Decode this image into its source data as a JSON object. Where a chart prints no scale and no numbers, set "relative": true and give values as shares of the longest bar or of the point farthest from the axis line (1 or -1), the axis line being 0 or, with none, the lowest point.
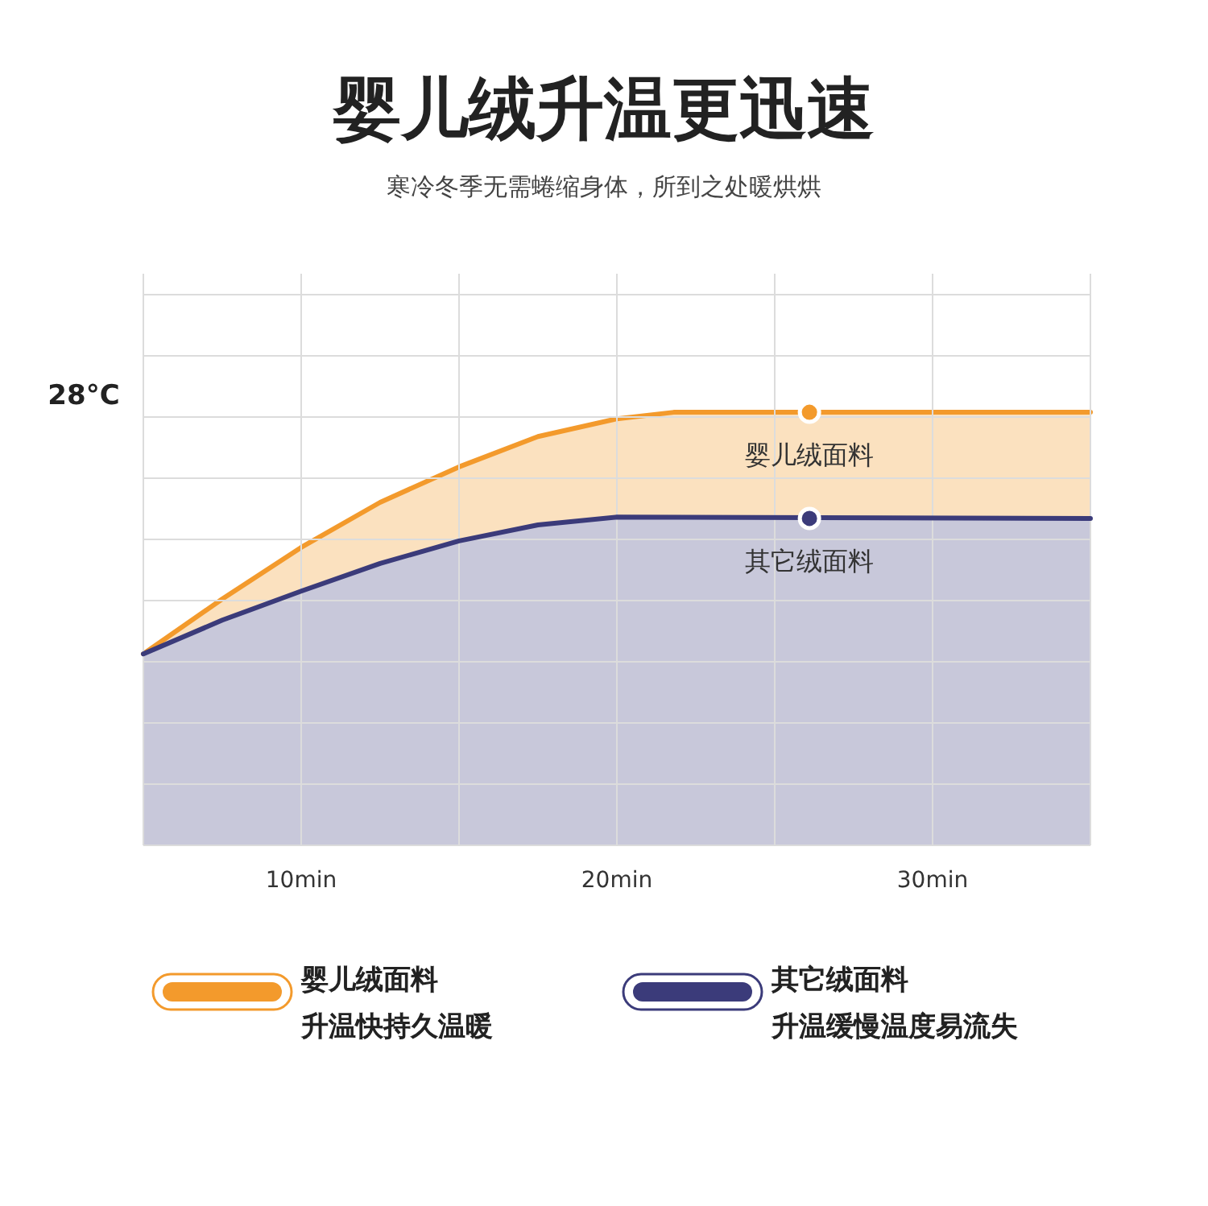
{
  "chart_data": {
    "type": "area",
    "title": "婴儿绒升温更迅速",
    "subtitle": "寒冷冬季无需蜷缩身体，所到之处暖烘烘",
    "relative": true,
    "grid": true,
    "legend": "bottom",
    "xlim": [
      5,
      35
    ],
    "xticks": [
      {
        "value": 10,
        "label": "10min"
      },
      {
        "value": 15,
        "label": null
      },
      {
        "value": 20,
        "label": "20min"
      },
      {
        "value": 25,
        "label": null
      },
      {
        "value": 30,
        "label": "30min"
      }
    ],
    "series": [
      {
        "name": "婴儿绒面料",
        "color": "#f39a2c",
        "x": [
          5,
          7.5,
          10,
          12.5,
          15,
          17.5,
          20,
          21.8,
          35
        ],
        "values": [
          0.442,
          0.569,
          0.688,
          0.792,
          0.874,
          0.944,
          0.985,
          1,
          1
        ]
      },
      {
        "name": "其它绒面料",
        "color": "#3b3b7a",
        "x": [
          5,
          7.5,
          10,
          12.5,
          15,
          17.5,
          20,
          35
        ],
        "values": [
          0.442,
          0.52,
          0.587,
          0.651,
          0.703,
          0.74,
          0.758,
          0.755
        ]
      }
    ],
    "annotations": [
      "28°C",
      "升温快持久温暖",
      "升温缓慢温度易流失",
      {
        "text": "婴儿绒面料",
        "x": 26.1,
        "y": 1
      },
      {
        "text": "其它绒面料",
        "x": 26.1,
        "y": 0.755
      }
    ]
  }
}
